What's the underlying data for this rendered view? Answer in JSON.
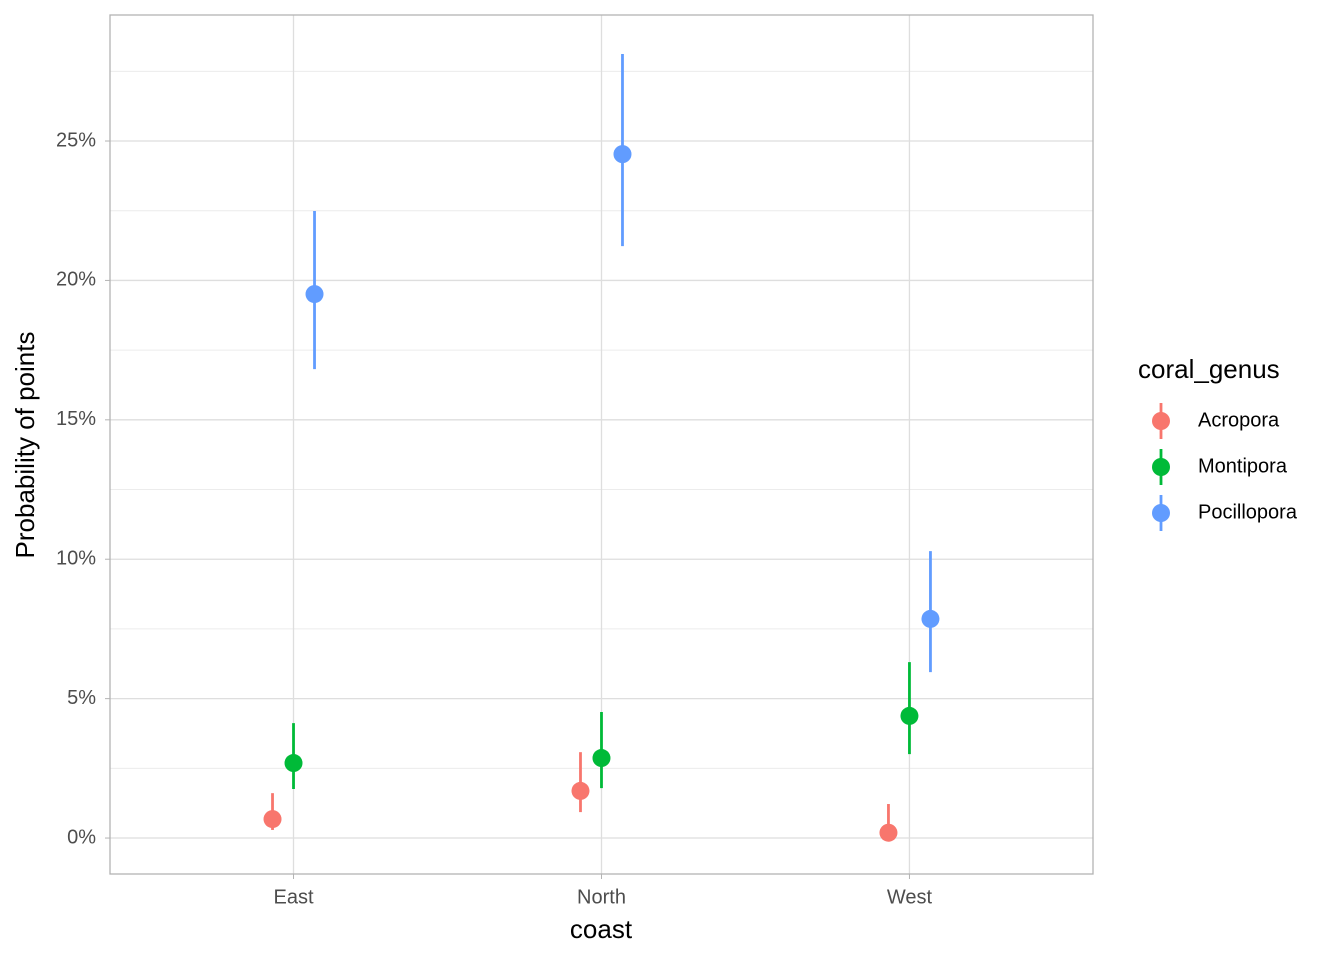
{
  "chart_data": {
    "type": "pointrange",
    "x_label": "coast",
    "y_label": "Probability of points",
    "categories": [
      "East",
      "North",
      "West"
    ],
    "legend_title": "coral_genus",
    "series": [
      {
        "name": "Acropora",
        "color": "#F8766D",
        "values": [
          0.68,
          1.69,
          0.19
        ],
        "lower": [
          0.29,
          0.93,
          0.0
        ],
        "upper": [
          1.61,
          3.08,
          1.22
        ]
      },
      {
        "name": "Montipora",
        "color": "#00BA38",
        "values": [
          2.69,
          2.87,
          4.38
        ],
        "lower": [
          1.76,
          1.79,
          3.01
        ],
        "upper": [
          4.12,
          4.52,
          6.31
        ]
      },
      {
        "name": "Pocillopora",
        "color": "#619CFF",
        "values": [
          19.51,
          24.53,
          7.86
        ],
        "lower": [
          16.82,
          21.23,
          5.95
        ],
        "upper": [
          22.49,
          28.12,
          10.29
        ]
      }
    ],
    "ylim": [
      -1.29,
      29.52
    ],
    "yticks": [
      {
        "value": 0,
        "label": "0%"
      },
      {
        "value": 5,
        "label": "5%"
      },
      {
        "value": 10,
        "label": "10%"
      },
      {
        "value": 15,
        "label": "15%"
      },
      {
        "value": 20,
        "label": "20%"
      },
      {
        "value": 25,
        "label": "25%"
      }
    ],
    "minor_yticks": [
      2.5,
      7.5,
      12.5,
      17.5,
      22.5,
      27.5
    ],
    "grid": true,
    "legend": "right"
  }
}
